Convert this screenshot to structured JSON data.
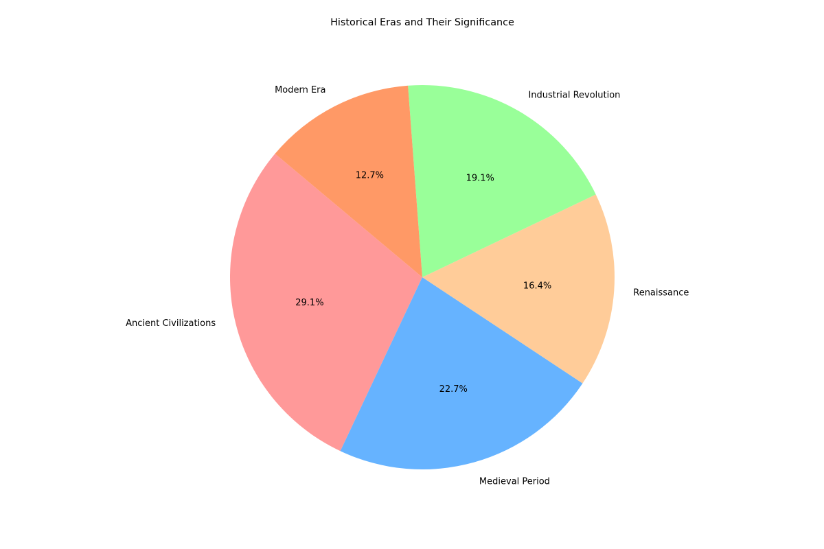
{
  "chart_data": {
    "type": "pie",
    "title": "Historical Eras and Their Significance",
    "categories": [
      "Ancient Civilizations",
      "Medieval Period",
      "Renaissance",
      "Industrial Revolution",
      "Modern Era"
    ],
    "values": [
      29.1,
      22.7,
      16.4,
      19.1,
      12.7
    ],
    "value_labels": [
      "29.1%",
      "22.7%",
      "16.4%",
      "19.1%",
      "12.7%"
    ],
    "colors": [
      "#ff9999",
      "#66b3ff",
      "#ffcc99",
      "#99ff99",
      "#ff9966"
    ],
    "start_angle_deg": 140,
    "direction": "counterclockwise",
    "legend": "none"
  }
}
